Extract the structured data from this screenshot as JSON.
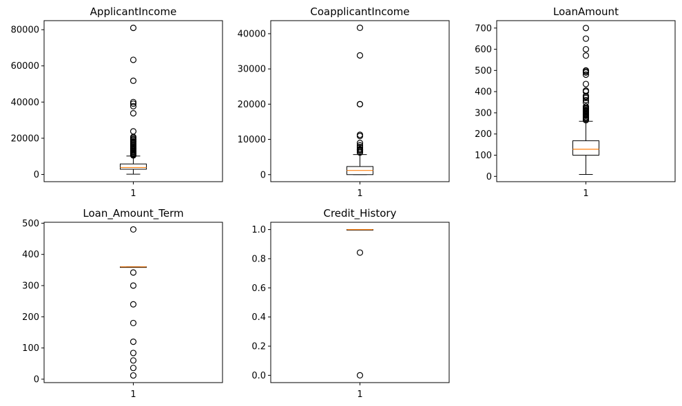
{
  "figure": {
    "type": "boxplot-grid",
    "box_color": "#000000",
    "median_color": "#ff7f0e",
    "flier_marker": "open-circle"
  },
  "chart_data": [
    {
      "type": "box",
      "title": "ApplicantIncome",
      "categories": [
        "1"
      ],
      "ylim": [
        -4000,
        85000
      ],
      "yticks": [
        0,
        20000,
        40000,
        60000,
        80000
      ],
      "box": {
        "whisker_low": 150,
        "q1": 2877,
        "median": 3812,
        "q3": 5795,
        "whisker_high": 10171
      },
      "outliers": [
        10500,
        10750,
        11000,
        11250,
        11500,
        12000,
        12500,
        13000,
        13500,
        14000,
        14600,
        15000,
        15500,
        16000,
        16700,
        17300,
        18000,
        18300,
        19000,
        19500,
        20200,
        20700,
        23800,
        33800,
        37700,
        39100,
        39999,
        51763,
        63337,
        81000
      ]
    },
    {
      "type": "box",
      "title": "CoapplicantIncome",
      "categories": [
        "1"
      ],
      "ylim": [
        -2000,
        43700
      ],
      "yticks": [
        0,
        10000,
        20000,
        30000,
        40000
      ],
      "box": {
        "whisker_low": 0,
        "q1": 0,
        "median": 1188,
        "q3": 2297,
        "whisker_high": 5700
      },
      "outliers": [
        6250,
        6667,
        7000,
        7101,
        7166,
        7250,
        7750,
        7873,
        8333,
        8980,
        10968,
        11300,
        20000,
        20000,
        33837,
        41667
      ]
    },
    {
      "type": "box",
      "title": "LoanAmount",
      "categories": [
        "1"
      ],
      "ylim": [
        -25,
        735
      ],
      "yticks": [
        0,
        100,
        200,
        300,
        400,
        500,
        600,
        700
      ],
      "box": {
        "whisker_low": 9,
        "q1": 100,
        "median": 128,
        "q3": 168,
        "whisker_high": 260
      },
      "outliers": [
        265,
        270,
        275,
        280,
        286,
        290,
        292,
        296,
        300,
        304,
        308,
        311,
        315,
        320,
        324,
        330,
        349,
        360,
        370,
        376,
        380,
        400,
        405,
        436,
        480,
        490,
        495,
        500,
        570,
        600,
        650,
        700
      ]
    },
    {
      "type": "box",
      "title": "Loan_Amount_Term",
      "categories": [
        "1"
      ],
      "ylim": [
        -11,
        503
      ],
      "yticks": [
        0,
        100,
        200,
        300,
        400,
        500
      ],
      "box": {
        "whisker_low": 360,
        "q1": 360,
        "median": 360,
        "q3": 360,
        "whisker_high": 360
      },
      "outliers": [
        12,
        36,
        60,
        84,
        120,
        180,
        240,
        300,
        342,
        480
      ]
    },
    {
      "type": "box",
      "title": "Credit_History",
      "categories": [
        "1"
      ],
      "ylim": [
        -0.05,
        1.05
      ],
      "yticks": [
        0.0,
        0.2,
        0.4,
        0.6,
        0.8,
        1.0
      ],
      "ytick_labels": [
        "0.0",
        "0.2",
        "0.4",
        "0.6",
        "0.8",
        "1.0"
      ],
      "box": {
        "whisker_low": 1.0,
        "q1": 1.0,
        "median": 1.0,
        "q3": 1.0,
        "whisker_high": 1.0
      },
      "outliers": [
        0.0,
        0.842
      ]
    }
  ]
}
